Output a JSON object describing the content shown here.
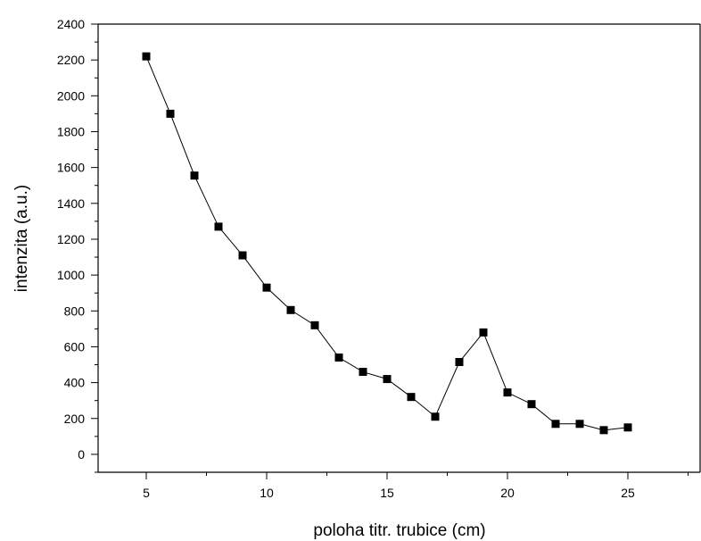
{
  "chart_data": {
    "type": "line",
    "xlabel": "poloha titr. trubice (cm)",
    "ylabel": "intenzita (a.u.)",
    "xlim": [
      3,
      28
    ],
    "ylim": [
      -100,
      2400
    ],
    "x_ticks": [
      5,
      10,
      15,
      20,
      25
    ],
    "y_ticks": [
      0,
      200,
      400,
      600,
      800,
      1000,
      1200,
      1400,
      1600,
      1800,
      2000,
      2200,
      2400
    ],
    "grid": false,
    "marker": "square",
    "color": "#000000",
    "series": [
      {
        "x": [
          5,
          6,
          7,
          8,
          9,
          10,
          11,
          12,
          13,
          14,
          15,
          16,
          17,
          18,
          19,
          20,
          21,
          22,
          23,
          24,
          25
        ],
        "y": [
          2220,
          1900,
          1555,
          1270,
          1110,
          930,
          805,
          720,
          540,
          460,
          420,
          320,
          210,
          515,
          680,
          345,
          280,
          170,
          170,
          135,
          150
        ]
      }
    ]
  }
}
